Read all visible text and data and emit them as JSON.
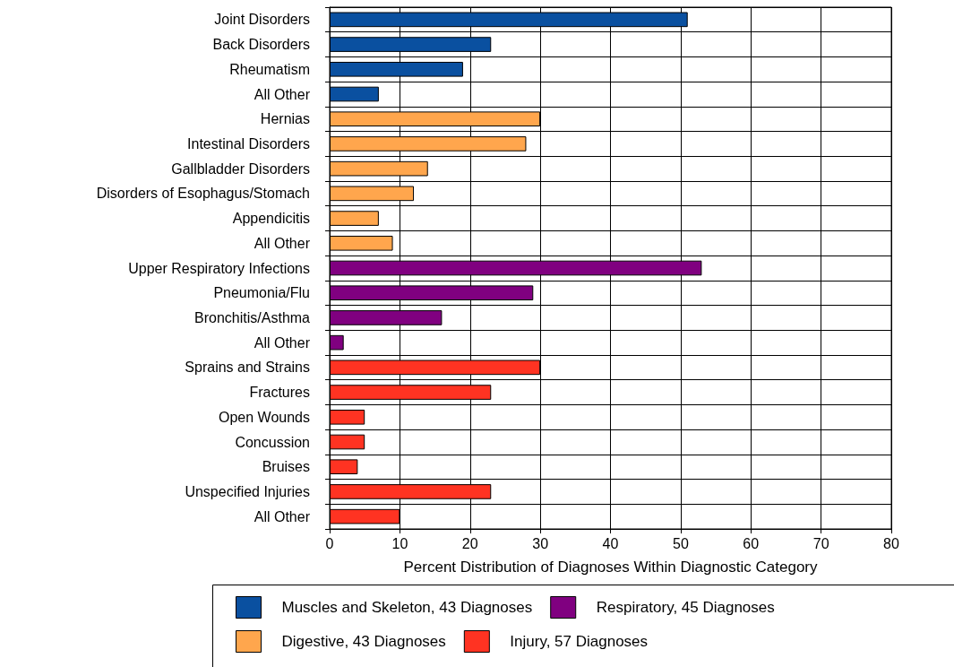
{
  "chart_data": {
    "type": "bar",
    "orientation": "horizontal",
    "xlabel": "Percent Distribution of Diagnoses Within Diagnostic Category",
    "categories": [
      "Joint Disorders",
      "Back Disorders",
      "Rheumatism",
      "All Other",
      "Hernias",
      "Intestinal Disorders",
      "Gallbladder Disorders",
      "Disorders of Esophagus/Stomach",
      "Appendicitis",
      "All Other",
      "Upper Respiratory Infections",
      "Pneumonia/Flu",
      "Bronchitis/Asthma",
      "All Other",
      "Sprains and Strains",
      "Fractures",
      "Open Wounds",
      "Concussion",
      "Bruises",
      "Unspecified Injuries",
      "All Other"
    ],
    "series": [
      {
        "name": "Muscles and Skeleton, 43 Diagnoses",
        "color": "#0a50a0",
        "values": [
          51,
          23,
          19,
          7,
          null,
          null,
          null,
          null,
          null,
          null,
          null,
          null,
          null,
          null,
          null,
          null,
          null,
          null,
          null,
          null,
          null
        ]
      },
      {
        "name": "Digestive, 43 Diagnoses",
        "color": "#ffa64d",
        "values": [
          null,
          null,
          null,
          null,
          30,
          28,
          14,
          12,
          7,
          9,
          null,
          null,
          null,
          null,
          null,
          null,
          null,
          null,
          null,
          null,
          null
        ]
      },
      {
        "name": "Respiratory, 45 Diagnoses",
        "color": "#800080",
        "values": [
          null,
          null,
          null,
          null,
          null,
          null,
          null,
          null,
          null,
          null,
          53,
          29,
          16,
          2,
          null,
          null,
          null,
          null,
          null,
          null,
          null
        ]
      },
      {
        "name": "Injury, 57 Diagnoses",
        "color": "#ff3322",
        "values": [
          null,
          null,
          null,
          null,
          null,
          null,
          null,
          null,
          null,
          null,
          null,
          null,
          null,
          null,
          30,
          23,
          5,
          5,
          4,
          23,
          10
        ]
      }
    ],
    "xlim": [
      0,
      80
    ],
    "xticks": [
      0,
      10,
      20,
      30,
      40,
      50,
      60,
      70,
      80
    ],
    "grid": true,
    "legend": "bottom"
  }
}
